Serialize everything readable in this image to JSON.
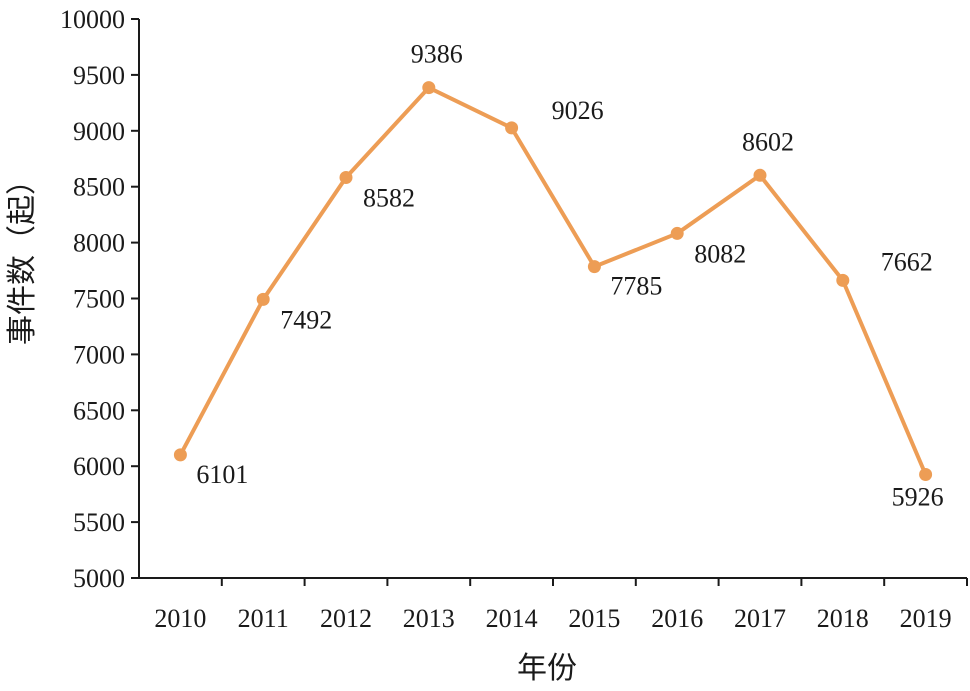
{
  "chart_data": {
    "type": "line",
    "xlabel": "年份",
    "ylabel": "事件数（起）",
    "categories": [
      "2010",
      "2011",
      "2012",
      "2013",
      "2014",
      "2015",
      "2016",
      "2017",
      "2018",
      "2019"
    ],
    "series": [
      {
        "values": [
          6101,
          7492,
          8582,
          9386,
          9026,
          7785,
          8082,
          8602,
          7662,
          5926
        ],
        "color": "#ED9D55"
      }
    ],
    "data_labels": [
      "6101",
      "7492",
      "8582",
      "9386",
      "9026",
      "7785",
      "8082",
      "8602",
      "7662",
      "5926"
    ],
    "ylim": [
      5000,
      10000
    ],
    "yticks": [
      "5000",
      "5500",
      "6000",
      "6500",
      "7000",
      "7500",
      "8000",
      "8500",
      "9000",
      "9500",
      "10000"
    ],
    "grid": false,
    "legend": "none",
    "axis_color": "#1a1a1a"
  }
}
